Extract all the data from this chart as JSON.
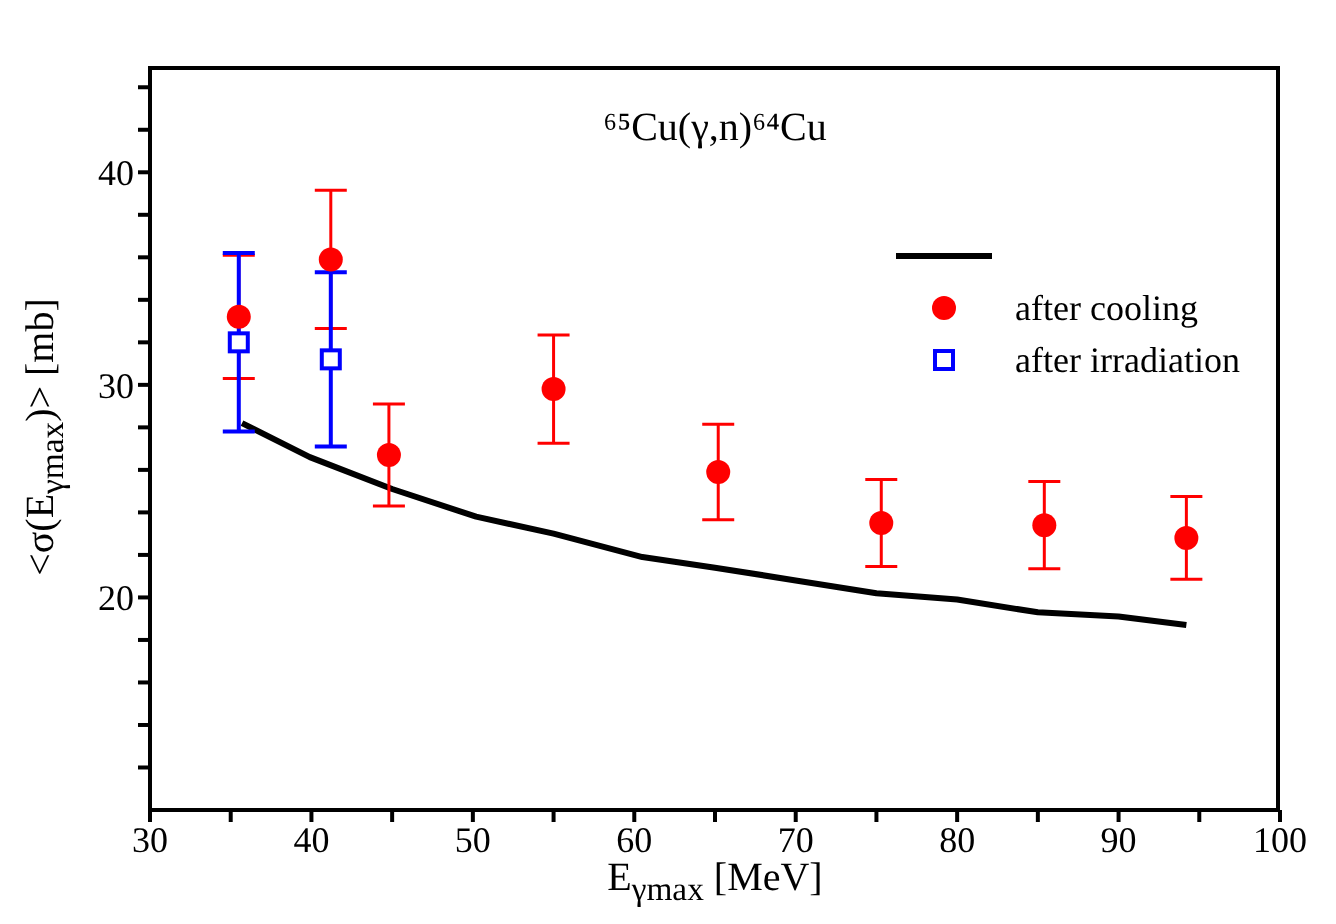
{
  "chart_data": {
    "type": "scatter",
    "title": "⁶⁵Cu(γ,n)⁶⁴Cu",
    "xlabel": "E$_{γmax}$ [MeV]",
    "ylabel": "<σ(E$_{γmax}$)> [mb]",
    "xlim": [
      30,
      100
    ],
    "xticks": [
      30,
      {
        "value": 35,
        "label": null
      },
      40,
      {
        "value": 45,
        "label": null
      },
      50,
      {
        "value": 55,
        "label": null
      },
      60,
      {
        "value": 65,
        "label": null
      },
      70,
      {
        "value": 75,
        "label": null
      },
      80,
      {
        "value": 85,
        "label": null
      },
      90,
      {
        "value": 95,
        "label": null
      },
      100
    ],
    "ylim": [
      10,
      45
    ],
    "yticks": [
      {
        "value": 12,
        "label": null
      },
      {
        "value": 14,
        "label": null
      },
      {
        "value": 16,
        "label": null
      },
      {
        "value": 18,
        "label": null
      },
      20,
      {
        "value": 22,
        "label": null
      },
      {
        "value": 24,
        "label": null
      },
      {
        "value": 26,
        "label": null
      },
      {
        "value": 28,
        "label": null
      },
      30,
      {
        "value": 32,
        "label": null
      },
      {
        "value": 34,
        "label": null
      },
      {
        "value": 36,
        "label": null
      },
      {
        "value": 38,
        "label": null
      },
      40,
      {
        "value": 42,
        "label": null
      },
      {
        "value": 44,
        "label": null
      }
    ],
    "grid": false,
    "legend": "top right",
    "series": [
      {
        "type": "line",
        "color": "#000000",
        "marker": "none",
        "line_style": "solid",
        "x": [
          35.7,
          39.9,
          45,
          50.2,
          55,
          60.5,
          65,
          70,
          75,
          80,
          85,
          90,
          94.2
        ],
        "values": [
          28.2,
          26.6,
          25.1,
          23.8,
          23.0,
          21.9,
          21.4,
          20.8,
          20.2,
          19.9,
          19.3,
          19.1,
          18.7
        ]
      },
      {
        "name": "after cooling",
        "color": "#ff0000",
        "marker": "circle",
        "x": [
          35.5,
          41.2,
          44.8,
          55,
          65.2,
          75.3,
          85.4,
          94.2
        ],
        "values": [
          33.2,
          35.9,
          26.7,
          29.8,
          25.9,
          23.5,
          23.4,
          22.8
        ],
        "errors": [
          2.9,
          3.25,
          2.4,
          2.55,
          2.25,
          2.05,
          2.05,
          1.95
        ]
      },
      {
        "name": "after irradiation",
        "color": "#0000ff",
        "marker": "square",
        "x": [
          35.5,
          41.2
        ],
        "values": [
          32.0,
          31.2
        ],
        "errors": [
          4.2,
          4.1
        ]
      }
    ]
  }
}
